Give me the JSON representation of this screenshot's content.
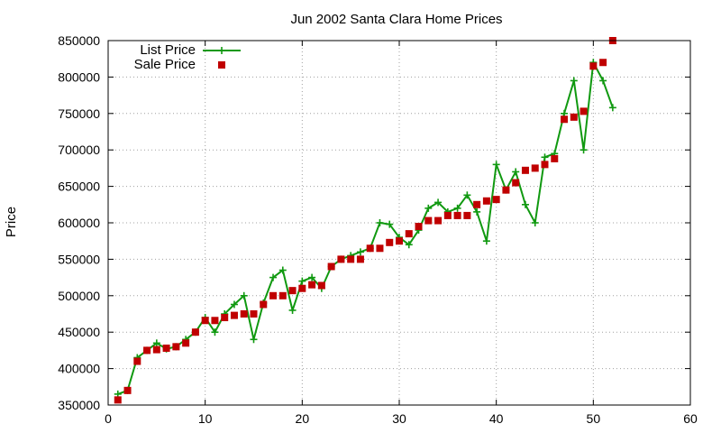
{
  "chart_data": {
    "type": "line",
    "title": "Jun 2002 Santa Clara Home Prices",
    "xlabel": "",
    "ylabel": "Price",
    "xlim": [
      0,
      60
    ],
    "ylim": [
      350000,
      850000
    ],
    "xticks": [
      0,
      10,
      20,
      30,
      40,
      50,
      60
    ],
    "yticks": [
      350000,
      400000,
      450000,
      500000,
      550000,
      600000,
      650000,
      700000,
      750000,
      800000,
      850000
    ],
    "grid": true,
    "legend": "top-left",
    "series": [
      {
        "name": "List Price",
        "style": "lines+crosses",
        "color": "#109910",
        "x": [
          1,
          2,
          3,
          4,
          5,
          6,
          7,
          8,
          9,
          10,
          11,
          12,
          13,
          14,
          15,
          16,
          17,
          18,
          19,
          20,
          21,
          22,
          23,
          24,
          25,
          26,
          27,
          28,
          29,
          30,
          31,
          32,
          33,
          34,
          35,
          36,
          37,
          38,
          39,
          40,
          41,
          42,
          43,
          44,
          45,
          46,
          47,
          48,
          49,
          50,
          51,
          52
        ],
        "y": [
          365000,
          370000,
          415000,
          425000,
          435000,
          427000,
          430000,
          440000,
          450000,
          470000,
          450000,
          475000,
          488000,
          500000,
          440000,
          490000,
          525000,
          535000,
          480000,
          520000,
          525000,
          510000,
          540000,
          550000,
          555000,
          560000,
          565000,
          600000,
          598000,
          580000,
          570000,
          590000,
          620000,
          628000,
          615000,
          620000,
          638000,
          615000,
          575000,
          680000,
          645000,
          670000,
          625000,
          600000,
          690000,
          695000,
          750000,
          795000,
          700000,
          820000,
          795000,
          758000
        ]
      },
      {
        "name": "Sale Price",
        "style": "points",
        "color": "#c00000",
        "x": [
          1,
          2,
          3,
          4,
          5,
          6,
          7,
          8,
          9,
          10,
          11,
          12,
          13,
          14,
          15,
          16,
          17,
          18,
          19,
          20,
          21,
          22,
          23,
          24,
          25,
          26,
          27,
          28,
          29,
          30,
          31,
          32,
          33,
          34,
          35,
          36,
          37,
          38,
          39,
          40,
          41,
          42,
          43,
          44,
          45,
          46,
          47,
          48,
          49,
          50,
          51,
          52
        ],
        "y": [
          357000,
          370000,
          410000,
          425000,
          426000,
          428000,
          430000,
          435000,
          450000,
          466000,
          466000,
          470000,
          473000,
          475000,
          475000,
          488000,
          500000,
          500000,
          507000,
          510000,
          515000,
          514000,
          540000,
          550000,
          550000,
          550000,
          565000,
          565000,
          573000,
          575000,
          585000,
          595000,
          603000,
          603000,
          610000,
          610000,
          610000,
          625000,
          630000,
          632000,
          645000,
          655000,
          672000,
          675000,
          680000,
          688000,
          742000,
          745000,
          753000,
          815000,
          820000,
          850000
        ]
      }
    ]
  }
}
